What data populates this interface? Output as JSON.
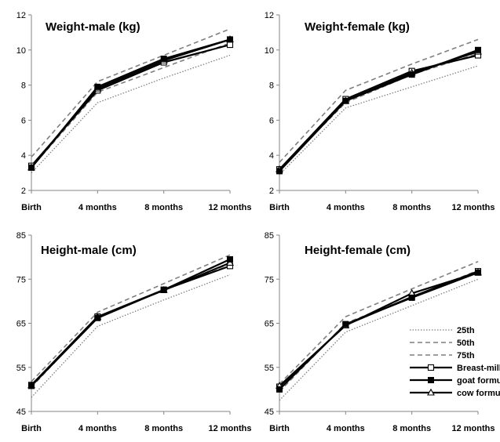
{
  "chart_data": [
    {
      "type": "line",
      "title": "Weight-male (kg)",
      "categories": [
        "Birth",
        "4 months",
        "8 months",
        "12 months"
      ],
      "ylim": [
        2,
        12
      ],
      "yticks": [
        2,
        4,
        6,
        8,
        10,
        12
      ],
      "series": [
        {
          "name": "25th",
          "values": [
            3.0,
            7.0,
            8.4,
            9.7
          ]
        },
        {
          "name": "50th",
          "values": [
            3.3,
            7.6,
            9.0,
            10.4
          ]
        },
        {
          "name": "75th",
          "values": [
            3.9,
            8.2,
            9.7,
            11.2
          ]
        },
        {
          "name": "Breast-milk",
          "values": [
            3.4,
            7.7,
            9.3,
            10.3
          ]
        },
        {
          "name": "goat formula",
          "values": [
            3.3,
            7.9,
            9.5,
            10.6
          ]
        },
        {
          "name": "cow formula",
          "values": [
            3.3,
            7.8,
            9.4,
            10.6
          ]
        }
      ]
    },
    {
      "type": "line",
      "title": "Weight-female (kg)",
      "categories": [
        "Birth",
        "4 months",
        "8 months",
        "12 months"
      ],
      "ylim": [
        2,
        12
      ],
      "yticks": [
        2,
        4,
        6,
        8,
        10,
        12
      ],
      "series": [
        {
          "name": "25th",
          "values": [
            2.9,
            6.7,
            7.9,
            9.1
          ]
        },
        {
          "name": "50th",
          "values": [
            3.2,
            7.0,
            8.6,
            9.8
          ]
        },
        {
          "name": "75th",
          "values": [
            3.6,
            7.7,
            9.2,
            10.6
          ]
        },
        {
          "name": "Breast-milk",
          "values": [
            3.2,
            7.2,
            8.8,
            9.7
          ]
        },
        {
          "name": "goat formula",
          "values": [
            3.1,
            7.1,
            8.6,
            10.0
          ]
        },
        {
          "name": "cow formula",
          "values": [
            3.2,
            7.1,
            8.7,
            9.9
          ]
        }
      ]
    },
    {
      "type": "line",
      "title": "Height-male (cm)",
      "categories": [
        "Birth",
        "4 months",
        "8 months",
        "12 months"
      ],
      "ylim": [
        45,
        85
      ],
      "yticks": [
        45,
        55,
        65,
        75,
        85
      ],
      "series": [
        {
          "name": "25th",
          "values": [
            48.2,
            64.3,
            70.3,
            76.0
          ]
        },
        {
          "name": "50th",
          "values": [
            50.5,
            66.5,
            72.6,
            78.5
          ]
        },
        {
          "name": "75th",
          "values": [
            51.8,
            67.5,
            74.0,
            80.5
          ]
        },
        {
          "name": "Breast-milk",
          "values": [
            51.0,
            66.5,
            72.6,
            78.0
          ]
        },
        {
          "name": "goat formula",
          "values": [
            50.8,
            66.2,
            72.6,
            79.5
          ]
        },
        {
          "name": "cow formula",
          "values": [
            50.9,
            66.4,
            72.5,
            78.7
          ]
        }
      ]
    },
    {
      "type": "line",
      "title": "Height-female (cm)",
      "categories": [
        "Birth",
        "4 months",
        "8 months",
        "12 months"
      ],
      "ylim": [
        45,
        85
      ],
      "yticks": [
        45,
        55,
        65,
        75,
        85
      ],
      "series": [
        {
          "name": "25th",
          "values": [
            47.5,
            63.0,
            69.0,
            75.0
          ]
        },
        {
          "name": "50th",
          "values": [
            49.5,
            65.0,
            71.0,
            77.0
          ]
        },
        {
          "name": "75th",
          "values": [
            51.2,
            66.5,
            72.8,
            79.0
          ]
        },
        {
          "name": "Breast-milk",
          "values": [
            50.6,
            64.6,
            71.0,
            76.8
          ]
        },
        {
          "name": "goat formula",
          "values": [
            50.0,
            64.8,
            70.8,
            76.5
          ]
        },
        {
          "name": "cow formula",
          "values": [
            50.8,
            64.5,
            71.8,
            76.5
          ]
        }
      ]
    }
  ],
  "legend": {
    "placement": "lower-right of height-female panel",
    "entries": [
      "25th",
      "50th",
      "75th",
      "Breast-milk",
      "goat formula",
      "cow formula"
    ]
  },
  "styles": {
    "25th": {
      "color": "#7f7f7f",
      "dash": "dotted",
      "marker": "none"
    },
    "50th": {
      "color": "#7f7f7f",
      "dash": "dashed",
      "marker": "none"
    },
    "75th": {
      "color": "#7f7f7f",
      "dash": "dashed",
      "marker": "none"
    },
    "Breast-milk": {
      "color": "#000000",
      "dash": "solid",
      "marker": "open-square"
    },
    "goat formula": {
      "color": "#000000",
      "dash": "solid",
      "marker": "filled-square"
    },
    "cow formula": {
      "color": "#000000",
      "dash": "solid",
      "marker": "open-triangle"
    }
  }
}
